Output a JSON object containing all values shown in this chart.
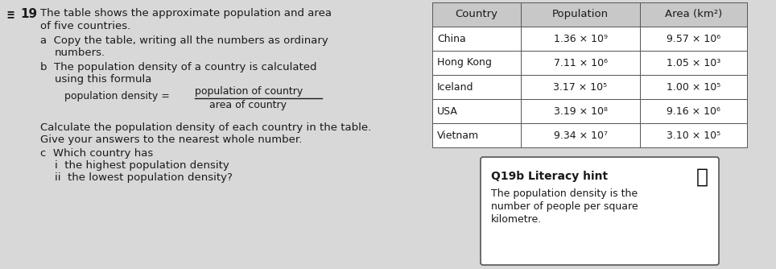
{
  "question_number": "19",
  "main_text_1": "The table shows the approximate population and area",
  "main_text_2": "of five countries.",
  "part_a_1": "a  Copy the table, writing all the numbers as ordinary",
  "part_a_2": "    numbers.",
  "part_b_1": "b  The population density of a country is calculated",
  "part_b_2": "    using this formula",
  "formula_left": "population density =",
  "formula_numerator": "population of country",
  "formula_denominator": "area of country",
  "part_b_calc_1": "Calculate the population density of each country in the table.",
  "part_b_calc_2": "Give your answers to the nearest whole number.",
  "part_c_0": "c  Which country has",
  "part_c_1": "   i  the highest population density",
  "part_c_2": "   ii  the lowest population density?",
  "table_headers": [
    "Country",
    "Population",
    "Area (km²)"
  ],
  "table_data": [
    [
      "China",
      "1.36 × 10⁹",
      "9.57 × 10⁶"
    ],
    [
      "Hong Kong",
      "7.11 × 10⁶",
      "1.05 × 10³"
    ],
    [
      "Iceland",
      "3.17 × 10⁵",
      "1.00 × 10⁵"
    ],
    [
      "USA",
      "3.19 × 10⁸",
      "9.16 × 10⁶"
    ],
    [
      "Vietnam",
      "9.34 × 10⁷",
      "3.10 × 10⁵"
    ]
  ],
  "literacy_hint_title": "Q19b Literacy hint",
  "literacy_hint_text": "The population density is the\nnumber of people per square\nkilometre.",
  "bg_color": "#d8d8d8",
  "text_color": "#1a1a1a",
  "table_bg": "#ffffff",
  "hint_bg": "#ffffff",
  "header_bg": "#c8c8c8",
  "table_border": "#555555",
  "hint_border": "#555555"
}
